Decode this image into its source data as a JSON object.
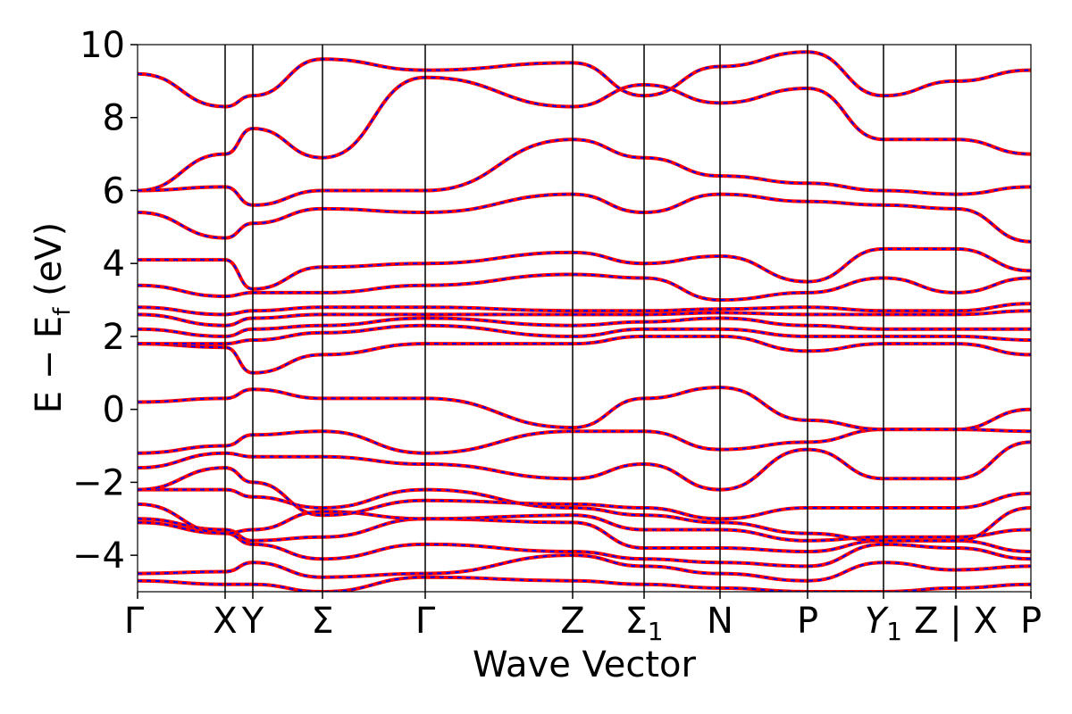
{
  "chart_data": {
    "type": "line",
    "title": "",
    "xlabel": "Wave Vector",
    "ylabel": "E − E_f (eV)",
    "ylabel_parts": {
      "lead": "E − E",
      "sub": "f",
      "tail": " (eV)"
    },
    "ylim": [
      -5,
      10
    ],
    "yticks": [
      {
        "value": -4,
        "label": "−4"
      },
      {
        "value": -2,
        "label": "−2"
      },
      {
        "value": 0,
        "label": "0"
      },
      {
        "value": 2,
        "label": "2"
      },
      {
        "value": 4,
        "label": "4"
      },
      {
        "value": 6,
        "label": "6"
      },
      {
        "value": 8,
        "label": "8"
      },
      {
        "value": 10,
        "label": "10"
      }
    ],
    "xlim": [
      0,
      1
    ],
    "kpoints": [
      {
        "label": "Γ",
        "x": 0.0
      },
      {
        "label": "X",
        "x": 0.098
      },
      {
        "label": "Y",
        "x": 0.129
      },
      {
        "label": "Σ",
        "x": 0.207
      },
      {
        "label": "Γ",
        "x": 0.322
      },
      {
        "label": "Z",
        "x": 0.487
      },
      {
        "label": "Σ",
        "sub": "1",
        "x": 0.567
      },
      {
        "label": "N",
        "x": 0.652
      },
      {
        "label": "P",
        "x": 0.75
      },
      {
        "label": "Y",
        "sub": "1",
        "italic": true,
        "x": 0.835
      },
      {
        "label": "Z | X",
        "x": 0.916
      },
      {
        "label": "P",
        "x": 1.0
      }
    ],
    "series_colors": {
      "solid": "#ff0000",
      "dashed": "#0000ff"
    },
    "bands": [
      {
        "y": [
          -4.7,
          -4.8,
          -4.8,
          -5.0,
          -4.6,
          -4.7,
          -4.8,
          -4.9,
          -5.0,
          -5.0,
          -4.9,
          -4.8
        ]
      },
      {
        "y": [
          -4.5,
          -4.45,
          -4.2,
          -4.6,
          -4.5,
          -4.0,
          -4.3,
          -4.5,
          -4.7,
          -4.2,
          -4.4,
          -4.3
        ]
      },
      {
        "y": [
          -3.1,
          -3.4,
          -3.7,
          -4.1,
          -3.7,
          -3.9,
          -4.1,
          -4.2,
          -4.3,
          -3.7,
          -3.8,
          -4.1
        ]
      },
      {
        "y": [
          -3.0,
          -3.3,
          -3.6,
          -3.5,
          -3.0,
          -3.1,
          -3.8,
          -3.8,
          -3.9,
          -3.6,
          -3.6,
          -3.9
        ]
      },
      {
        "y": [
          -2.6,
          -3.4,
          -3.3,
          -2.8,
          -3.0,
          -2.9,
          -3.3,
          -3.3,
          -3.6,
          -3.5,
          -3.5,
          -3.3
        ]
      },
      {
        "y": [
          -2.2,
          -2.2,
          -2.4,
          -2.7,
          -2.2,
          -2.7,
          -2.9,
          -3.1,
          -3.4,
          -3.6,
          -3.6,
          -2.7
        ]
      },
      {
        "y": [
          -2.2,
          -1.6,
          -2.0,
          -2.9,
          -2.5,
          -2.6,
          -2.7,
          -3.0,
          -2.7,
          -2.7,
          -2.7,
          -2.3
        ]
      },
      {
        "y": [
          -1.6,
          -1.2,
          -1.3,
          -1.3,
          -1.5,
          -1.9,
          -1.5,
          -2.2,
          -1.1,
          -1.9,
          -1.9,
          -0.9
        ]
      },
      {
        "y": [
          -1.2,
          -1.0,
          -0.7,
          -0.6,
          -1.2,
          -0.6,
          -0.6,
          -1.1,
          -0.9,
          -0.55,
          -0.55,
          -0.6
        ]
      },
      {
        "y": [
          0.2,
          0.3,
          0.55,
          0.3,
          0.3,
          -0.5,
          0.3,
          0.6,
          -0.3,
          -0.55,
          -0.55,
          0.0
        ]
      },
      {
        "y": [
          1.8,
          1.7,
          1.0,
          1.5,
          1.8,
          1.8,
          2.0,
          2.0,
          1.6,
          1.8,
          1.8,
          1.5
        ]
      },
      {
        "y": [
          1.8,
          1.8,
          1.9,
          2.1,
          2.3,
          2.0,
          2.2,
          2.2,
          2.0,
          2.0,
          2.0,
          1.9
        ]
      },
      {
        "y": [
          2.2,
          2.0,
          2.2,
          2.3,
          2.5,
          2.3,
          2.4,
          2.5,
          2.3,
          2.2,
          2.2,
          2.2
        ]
      },
      {
        "y": [
          2.6,
          2.3,
          2.5,
          2.6,
          2.6,
          2.6,
          2.6,
          2.65,
          2.6,
          2.6,
          2.6,
          2.7
        ]
      },
      {
        "y": [
          2.8,
          2.6,
          2.7,
          2.8,
          2.8,
          2.7,
          2.7,
          2.75,
          2.8,
          2.7,
          2.7,
          2.9
        ]
      },
      {
        "y": [
          3.4,
          3.1,
          3.2,
          3.2,
          3.4,
          3.7,
          3.6,
          3.0,
          3.2,
          3.6,
          3.2,
          3.6
        ]
      },
      {
        "y": [
          4.1,
          4.1,
          3.3,
          3.9,
          4.0,
          4.3,
          4.0,
          4.2,
          3.5,
          4.4,
          4.4,
          3.8
        ]
      },
      {
        "y": [
          5.4,
          4.7,
          5.1,
          5.5,
          5.4,
          5.9,
          5.4,
          5.9,
          5.7,
          5.6,
          5.5,
          4.6
        ]
      },
      {
        "y": [
          6.0,
          6.1,
          5.6,
          6.0,
          6.0,
          7.4,
          6.9,
          6.4,
          6.2,
          6.0,
          5.9,
          6.1
        ]
      },
      {
        "y": [
          6.0,
          7.0,
          7.7,
          6.9,
          9.1,
          8.3,
          8.9,
          8.4,
          8.8,
          7.4,
          7.4,
          7.0
        ]
      },
      {
        "y": [
          9.2,
          8.3,
          8.6,
          9.6,
          9.3,
          9.5,
          8.6,
          9.4,
          9.8,
          8.6,
          9.0,
          9.3
        ]
      }
    ]
  }
}
